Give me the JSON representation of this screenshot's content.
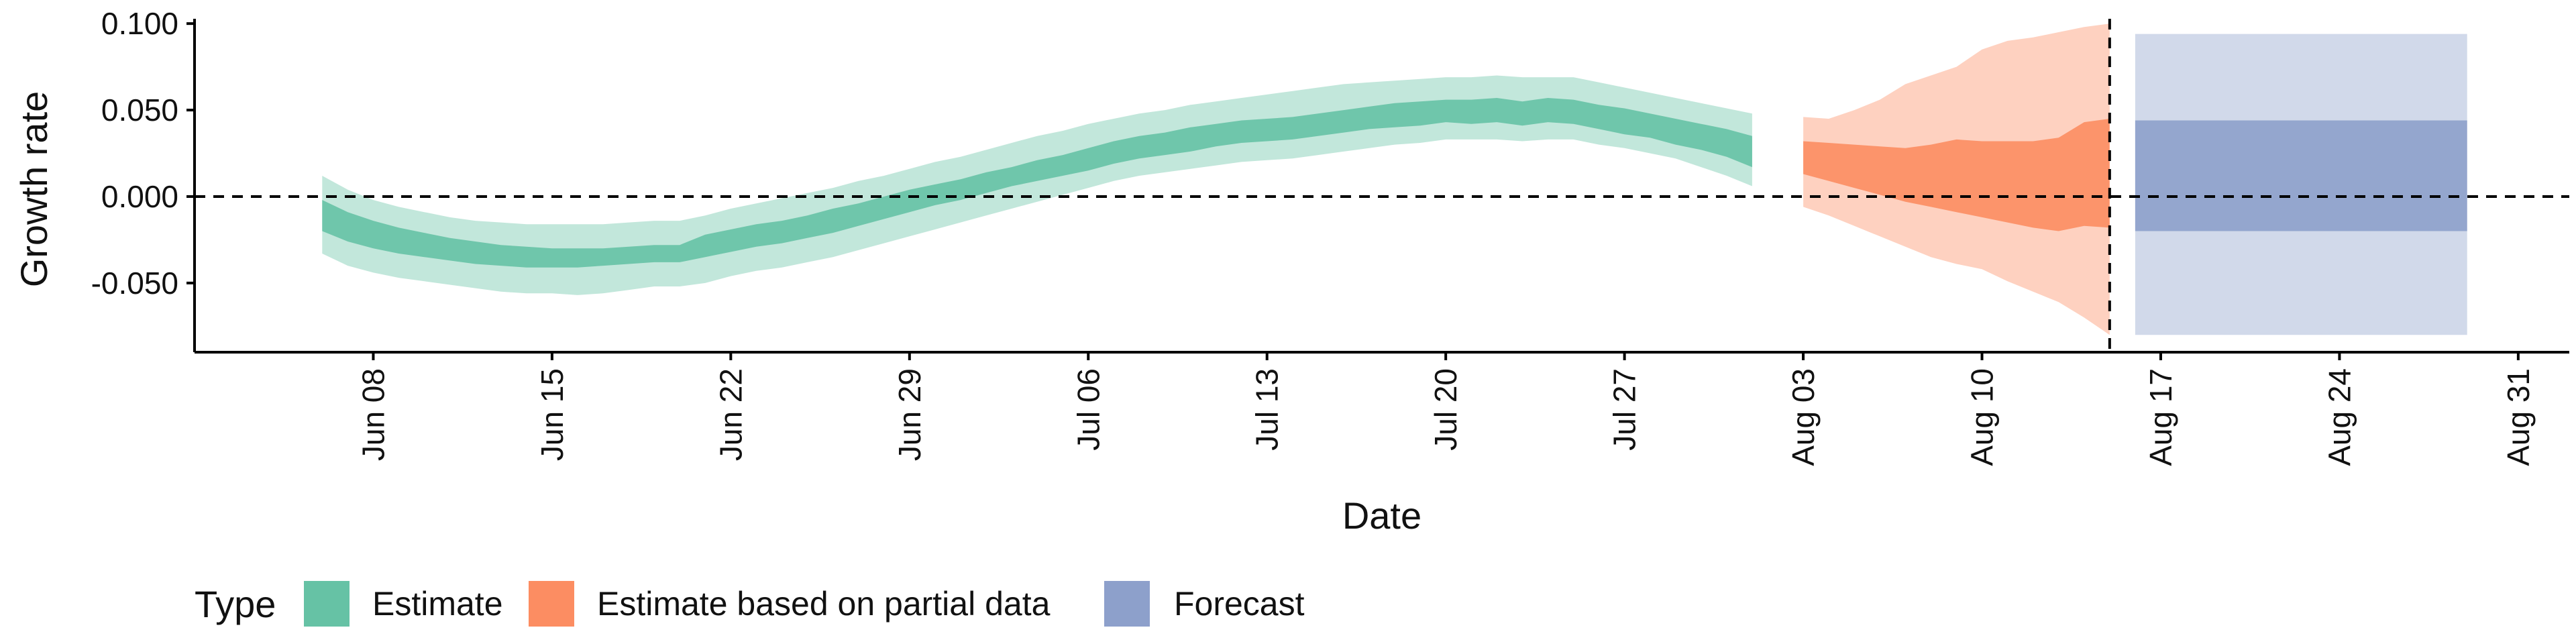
{
  "chart_data": {
    "type": "area",
    "xlabel": "Date",
    "ylabel": "Growth rate",
    "x_ticks": [
      "Jun 08",
      "Jun 15",
      "Jun 22",
      "Jun 29",
      "Jul 06",
      "Jul 13",
      "Jul 20",
      "Jul 27",
      "Aug 03",
      "Aug 10",
      "Aug 17",
      "Aug 24",
      "Aug 31"
    ],
    "y_ticks": [
      "-0.050",
      "0.000",
      "0.050",
      "0.100"
    ],
    "ylim": [
      -0.09,
      0.102
    ],
    "xlim": [
      "2020-06-01",
      "2020-09-02"
    ],
    "grid": false,
    "reference_lines": [
      {
        "axis": "y",
        "value": 0,
        "style": "dashed"
      },
      {
        "axis": "x",
        "value": "2020-08-15",
        "style": "dashed"
      }
    ],
    "legend": {
      "title": "Type",
      "position": "bottom-left",
      "entries": [
        "Estimate",
        "Estimate based on partial data",
        "Forecast"
      ]
    },
    "series": [
      {
        "name": "Estimate",
        "color": "#66c2a5",
        "x": [
          "2020-06-06",
          "2020-06-07",
          "2020-06-08",
          "2020-06-09",
          "2020-06-10",
          "2020-06-11",
          "2020-06-12",
          "2020-06-13",
          "2020-06-14",
          "2020-06-15",
          "2020-06-16",
          "2020-06-17",
          "2020-06-18",
          "2020-06-19",
          "2020-06-20",
          "2020-06-21",
          "2020-06-22",
          "2020-06-23",
          "2020-06-24",
          "2020-06-25",
          "2020-06-26",
          "2020-06-27",
          "2020-06-28",
          "2020-06-29",
          "2020-06-30",
          "2020-07-01",
          "2020-07-02",
          "2020-07-03",
          "2020-07-04",
          "2020-07-05",
          "2020-07-06",
          "2020-07-07",
          "2020-07-08",
          "2020-07-09",
          "2020-07-10",
          "2020-07-11",
          "2020-07-12",
          "2020-07-13",
          "2020-07-14",
          "2020-07-15",
          "2020-07-16",
          "2020-07-17",
          "2020-07-18",
          "2020-07-19",
          "2020-07-20",
          "2020-07-21",
          "2020-07-22",
          "2020-07-23",
          "2020-07-24",
          "2020-07-25",
          "2020-07-26",
          "2020-07-27",
          "2020-07-28",
          "2020-07-29",
          "2020-07-30",
          "2020-07-31",
          "2020-08-01"
        ],
        "lower90": [
          -0.033,
          -0.04,
          -0.044,
          -0.047,
          -0.049,
          -0.051,
          -0.053,
          -0.055,
          -0.056,
          -0.056,
          -0.057,
          -0.056,
          -0.054,
          -0.052,
          -0.052,
          -0.05,
          -0.046,
          -0.043,
          -0.041,
          -0.038,
          -0.035,
          -0.031,
          -0.027,
          -0.023,
          -0.019,
          -0.015,
          -0.011,
          -0.007,
          -0.003,
          0.001,
          0.005,
          0.009,
          0.012,
          0.014,
          0.016,
          0.018,
          0.02,
          0.021,
          0.022,
          0.024,
          0.026,
          0.028,
          0.03,
          0.031,
          0.033,
          0.033,
          0.033,
          0.032,
          0.033,
          0.033,
          0.03,
          0.028,
          0.025,
          0.022,
          0.017,
          0.012,
          0.006
        ],
        "lower50": [
          -0.02,
          -0.026,
          -0.03,
          -0.033,
          -0.035,
          -0.037,
          -0.039,
          -0.04,
          -0.041,
          -0.041,
          -0.041,
          -0.04,
          -0.039,
          -0.038,
          -0.038,
          -0.035,
          -0.032,
          -0.029,
          -0.027,
          -0.024,
          -0.021,
          -0.017,
          -0.013,
          -0.009,
          -0.005,
          -0.002,
          0.002,
          0.006,
          0.009,
          0.012,
          0.015,
          0.019,
          0.022,
          0.024,
          0.026,
          0.029,
          0.031,
          0.032,
          0.033,
          0.035,
          0.037,
          0.039,
          0.04,
          0.041,
          0.043,
          0.042,
          0.043,
          0.041,
          0.043,
          0.042,
          0.039,
          0.036,
          0.034,
          0.03,
          0.027,
          0.023,
          0.017
        ],
        "upper50": [
          -0.002,
          -0.009,
          -0.014,
          -0.018,
          -0.021,
          -0.024,
          -0.026,
          -0.028,
          -0.029,
          -0.03,
          -0.03,
          -0.03,
          -0.029,
          -0.028,
          -0.028,
          -0.022,
          -0.019,
          -0.016,
          -0.014,
          -0.011,
          -0.007,
          -0.004,
          0.0,
          0.004,
          0.007,
          0.01,
          0.014,
          0.017,
          0.021,
          0.024,
          0.028,
          0.032,
          0.035,
          0.037,
          0.04,
          0.042,
          0.044,
          0.045,
          0.046,
          0.048,
          0.05,
          0.052,
          0.054,
          0.055,
          0.056,
          0.056,
          0.057,
          0.055,
          0.057,
          0.056,
          0.053,
          0.051,
          0.048,
          0.045,
          0.042,
          0.039,
          0.035
        ],
        "upper90": [
          0.012,
          0.004,
          -0.002,
          -0.006,
          -0.009,
          -0.012,
          -0.014,
          -0.015,
          -0.016,
          -0.016,
          -0.016,
          -0.016,
          -0.015,
          -0.014,
          -0.014,
          -0.011,
          -0.007,
          -0.004,
          -0.001,
          0.002,
          0.005,
          0.009,
          0.012,
          0.016,
          0.02,
          0.023,
          0.027,
          0.031,
          0.035,
          0.038,
          0.042,
          0.045,
          0.048,
          0.05,
          0.053,
          0.055,
          0.057,
          0.059,
          0.061,
          0.063,
          0.065,
          0.066,
          0.067,
          0.068,
          0.069,
          0.069,
          0.07,
          0.069,
          0.069,
          0.069,
          0.066,
          0.063,
          0.06,
          0.057,
          0.054,
          0.051,
          0.048
        ]
      },
      {
        "name": "Estimate based on partial data",
        "color": "#fc8d62",
        "x": [
          "2020-08-03",
          "2020-08-04",
          "2020-08-05",
          "2020-08-06",
          "2020-08-07",
          "2020-08-08",
          "2020-08-09",
          "2020-08-10",
          "2020-08-11",
          "2020-08-12",
          "2020-08-13",
          "2020-08-14",
          "2020-08-15"
        ],
        "lower90": [
          -0.006,
          -0.011,
          -0.017,
          -0.023,
          -0.029,
          -0.035,
          -0.039,
          -0.042,
          -0.049,
          -0.055,
          -0.061,
          -0.07,
          -0.08
        ],
        "lower50": [
          0.013,
          0.009,
          0.005,
          0.001,
          -0.003,
          -0.006,
          -0.009,
          -0.012,
          -0.015,
          -0.018,
          -0.02,
          -0.017,
          -0.018
        ],
        "upper50": [
          0.032,
          0.031,
          0.03,
          0.029,
          0.028,
          0.03,
          0.033,
          0.032,
          0.032,
          0.032,
          0.034,
          0.043,
          0.045
        ],
        "upper90": [
          0.046,
          0.045,
          0.05,
          0.056,
          0.065,
          0.07,
          0.075,
          0.085,
          0.09,
          0.092,
          0.095,
          0.098,
          0.1
        ]
      },
      {
        "name": "Forecast",
        "color": "#8da0cb",
        "x": [
          "2020-08-16",
          "2020-08-29"
        ],
        "lower90": [
          -0.08,
          -0.08
        ],
        "lower50": [
          -0.02,
          -0.02
        ],
        "upper50": [
          0.044,
          0.044
        ],
        "upper90": [
          0.094,
          0.094
        ]
      }
    ]
  }
}
